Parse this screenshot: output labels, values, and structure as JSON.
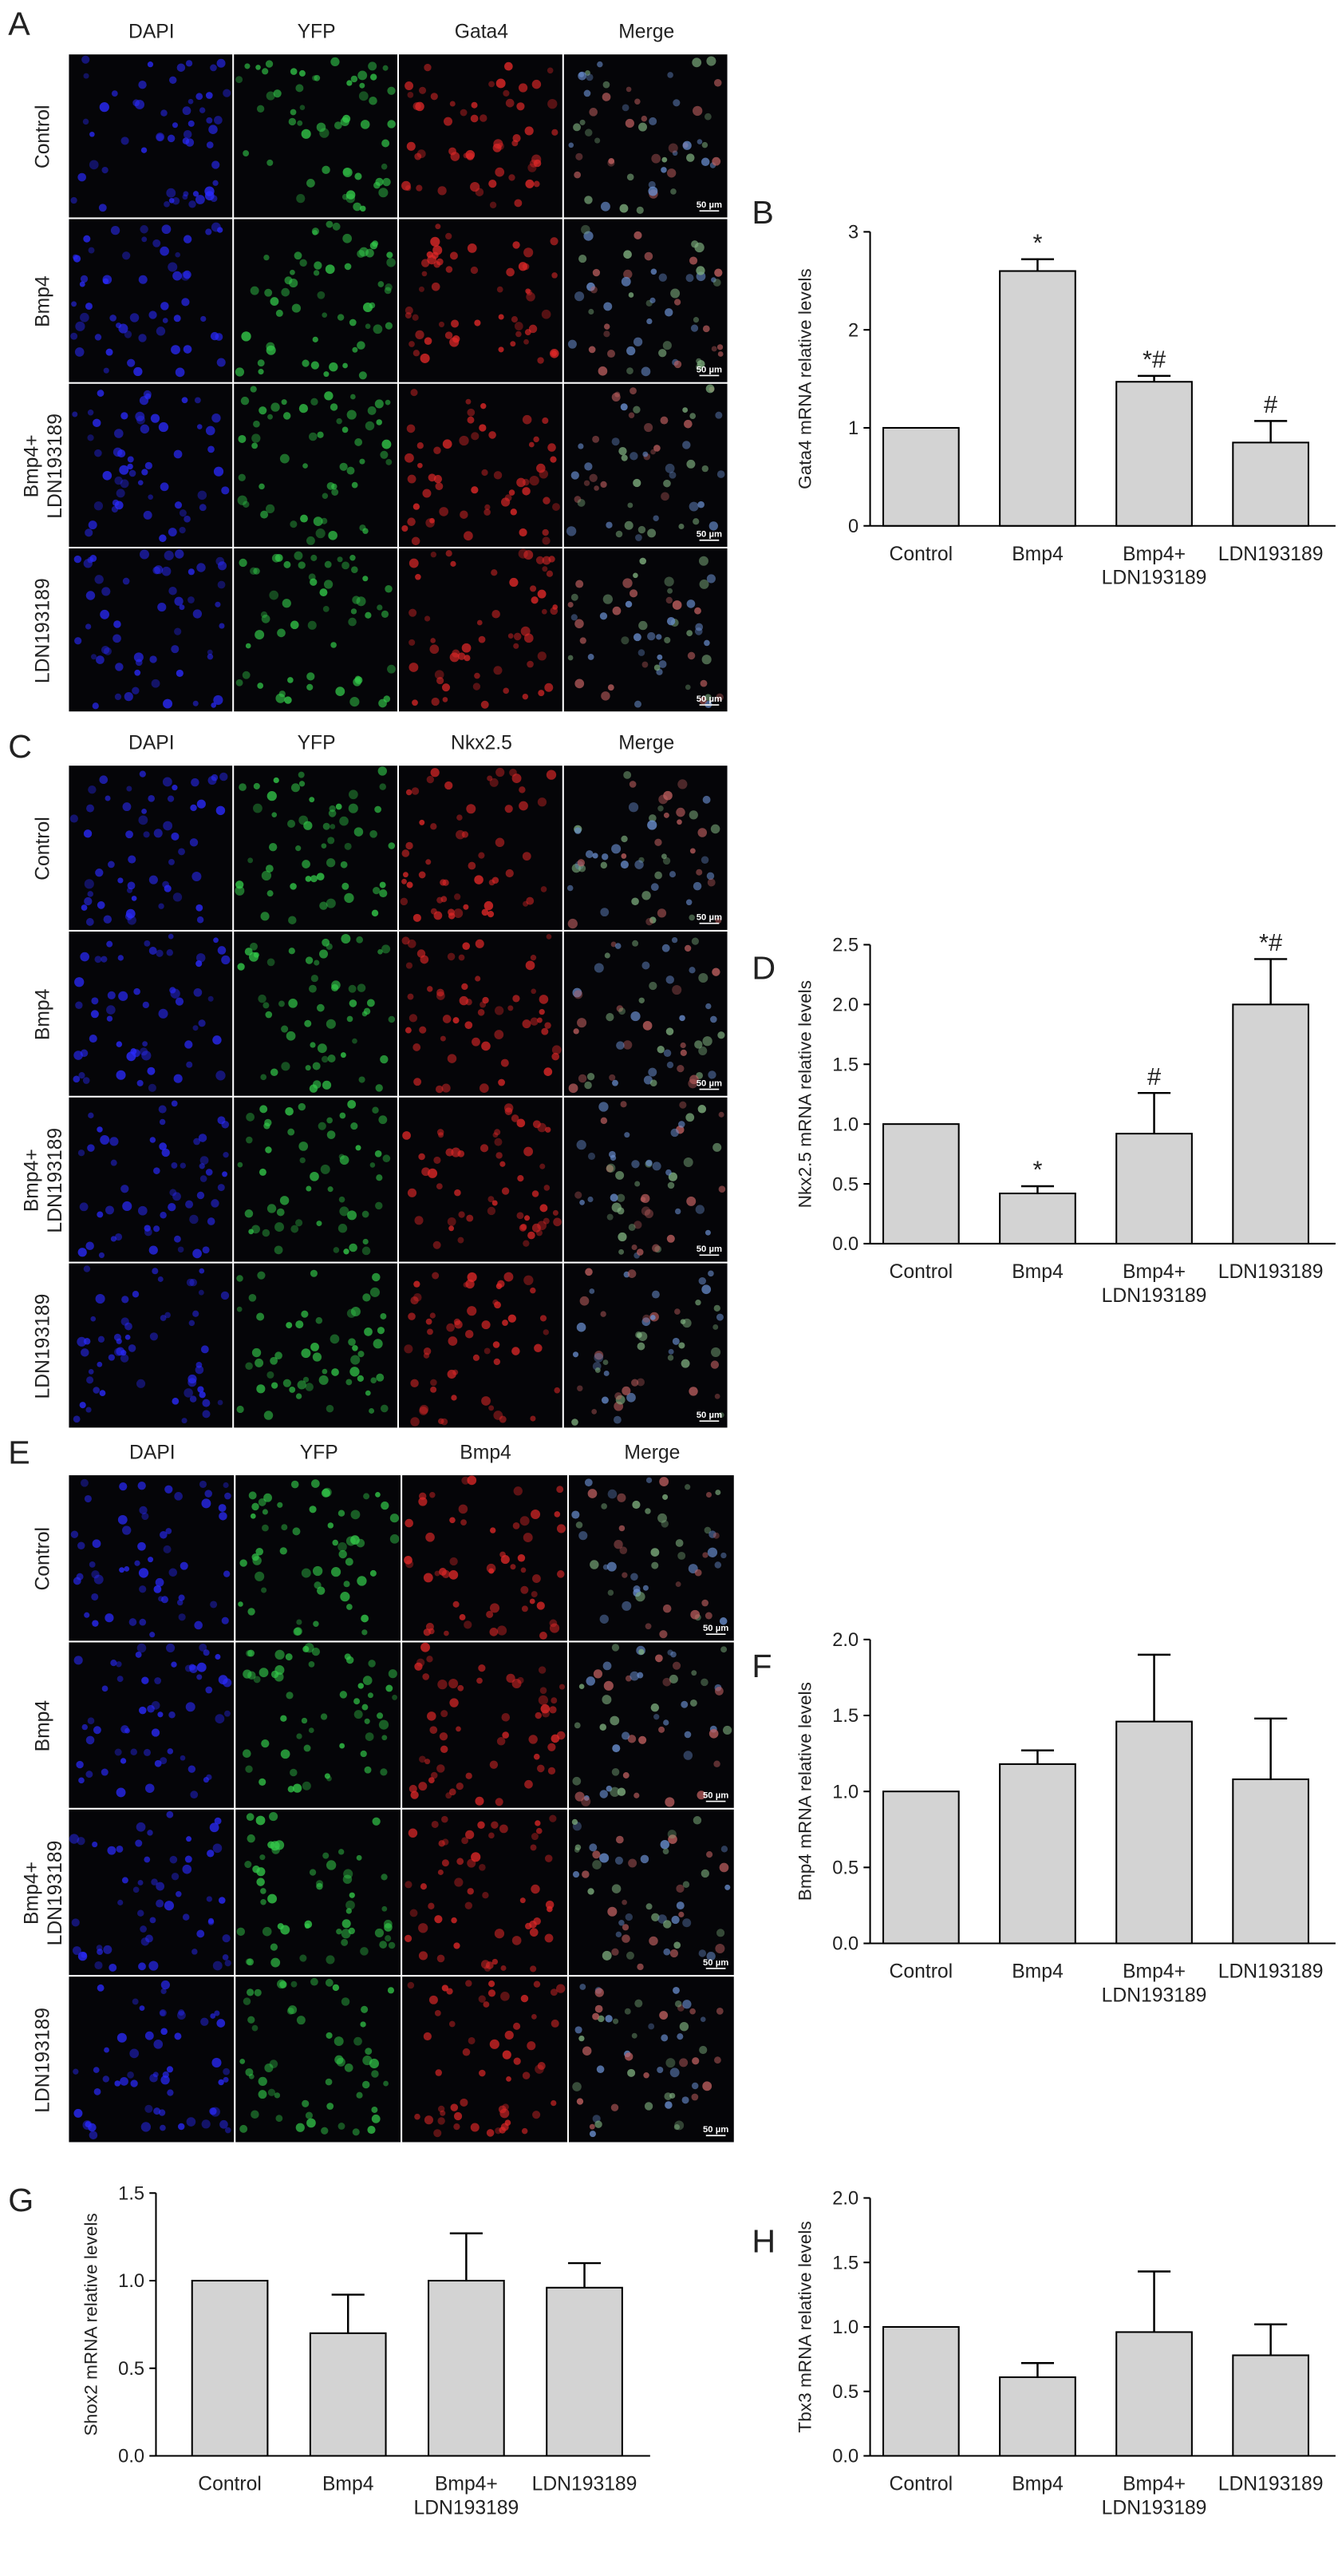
{
  "image_panels": [
    {
      "letter": "A",
      "columns": [
        "DAPI",
        "YFP",
        "Gata4",
        "Merge"
      ],
      "rows": [
        "Control",
        "Bmp4",
        "Bmp4+\nLDN193189",
        "LDN193189"
      ],
      "scale_bar": "50 µm"
    },
    {
      "letter": "C",
      "columns": [
        "DAPI",
        "YFP",
        "Nkx2.5",
        "Merge"
      ],
      "rows": [
        "Control",
        "Bmp4",
        "Bmp4+\nLDN193189",
        "LDN193189"
      ],
      "scale_bar": "50 µm"
    },
    {
      "letter": "E",
      "columns": [
        "DAPI",
        "YFP",
        "Bmp4",
        "Merge"
      ],
      "rows": [
        "Control",
        "Bmp4",
        "Bmp4+\nLDN193189",
        "LDN193189"
      ],
      "scale_bar": "50 µm"
    }
  ],
  "chart_data": [
    {
      "type": "bar",
      "letter": "B",
      "y_label": "Gata4 mRNA relative levels",
      "categories": [
        "Control",
        "Bmp4",
        "Bmp4+\nLDN193189",
        "LDN193189"
      ],
      "values": [
        1.0,
        2.6,
        1.47,
        0.85
      ],
      "errors": [
        null,
        0.12,
        0.06,
        0.22
      ],
      "annotations": [
        null,
        "*",
        "*#",
        "#"
      ],
      "color": "#d3d3d3",
      "ylim": [
        0,
        3
      ],
      "yticks": [
        0,
        1,
        2,
        3
      ]
    },
    {
      "type": "bar",
      "letter": "D",
      "y_label": "Nkx2.5 mRNA relative levels",
      "categories": [
        "Control",
        "Bmp4",
        "Bmp4+\nLDN193189",
        "LDN193189"
      ],
      "values": [
        1.0,
        0.42,
        0.92,
        2.0
      ],
      "errors": [
        null,
        0.06,
        0.34,
        0.38
      ],
      "annotations": [
        null,
        "*",
        "#",
        "*#"
      ],
      "color": "#d3d3d3",
      "ylim": [
        0,
        2.5
      ],
      "yticks": [
        {
          "value": 0,
          "label": "0.0"
        },
        {
          "value": 0.5,
          "label": "0.5"
        },
        {
          "value": 1,
          "label": "1.0"
        },
        {
          "value": 1.5,
          "label": "1.5"
        },
        {
          "value": 2,
          "label": "2.0"
        },
        {
          "value": 2.5,
          "label": "2.5"
        }
      ]
    },
    {
      "type": "bar",
      "letter": "F",
      "y_label": "Bmp4 mRNA relative levels",
      "categories": [
        "Control",
        "Bmp4",
        "Bmp4+\nLDN193189",
        "LDN193189"
      ],
      "values": [
        1.0,
        1.18,
        1.46,
        1.08
      ],
      "errors": [
        null,
        0.09,
        0.44,
        0.4
      ],
      "color": "#d3d3d3",
      "ylim": [
        0,
        2
      ],
      "yticks": [
        {
          "value": 0,
          "label": "0.0"
        },
        {
          "value": 0.5,
          "label": "0.5"
        },
        {
          "value": 1,
          "label": "1.0"
        },
        {
          "value": 1.5,
          "label": "1.5"
        },
        {
          "value": 2,
          "label": "2.0"
        }
      ]
    },
    {
      "type": "bar",
      "letter": "G",
      "y_label": "Shox2 mRNA relative levels",
      "categories": [
        "Control",
        "Bmp4",
        "Bmp4+\nLDN193189",
        "LDN193189"
      ],
      "values": [
        1.0,
        0.7,
        1.0,
        0.96
      ],
      "errors": [
        null,
        0.22,
        0.27,
        0.14
      ],
      "color": "#d3d3d3",
      "ylim": [
        0,
        1.5
      ],
      "yticks": [
        {
          "value": 0,
          "label": "0.0"
        },
        {
          "value": 0.5,
          "label": "0.5"
        },
        {
          "value": 1,
          "label": "1.0"
        },
        {
          "value": 1.5,
          "label": "1.5"
        }
      ]
    },
    {
      "type": "bar",
      "letter": "H",
      "y_label": "Tbx3 mRNA relative levels",
      "categories": [
        "Control",
        "Bmp4",
        "Bmp4+\nLDN193189",
        "LDN193189"
      ],
      "values": [
        1.0,
        0.61,
        0.96,
        0.78
      ],
      "errors": [
        null,
        0.11,
        0.47,
        0.24
      ],
      "color": "#d3d3d3",
      "ylim": [
        0,
        2
      ],
      "yticks": [
        {
          "value": 0,
          "label": "0.0"
        },
        {
          "value": 0.5,
          "label": "0.5"
        },
        {
          "value": 1,
          "label": "1.0"
        },
        {
          "value": 1.5,
          "label": "1.5"
        },
        {
          "value": 2,
          "label": "2.0"
        }
      ]
    }
  ]
}
